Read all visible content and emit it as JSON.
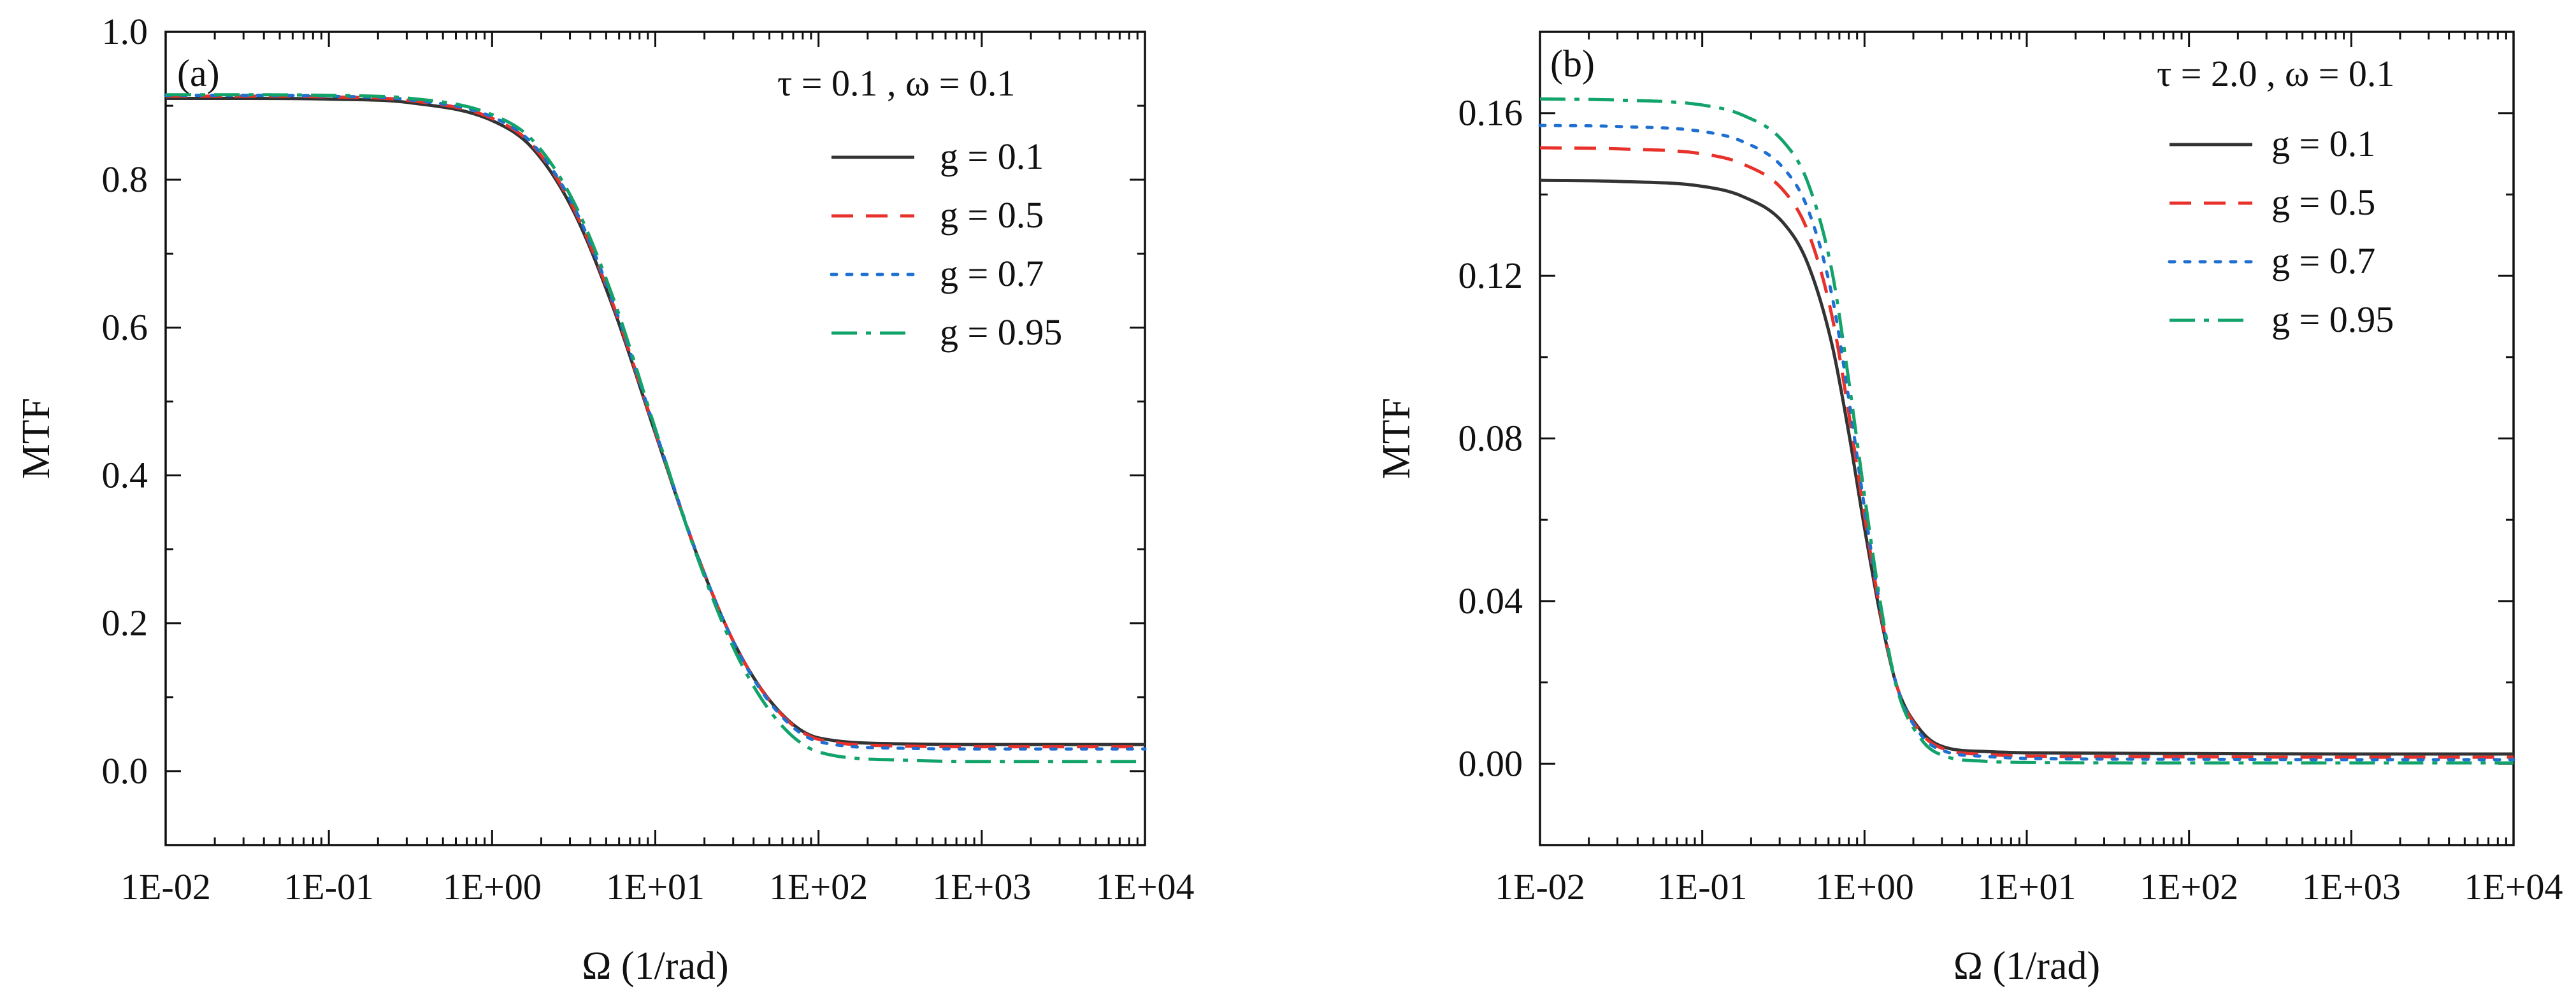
{
  "chart_data": [
    {
      "type": "line",
      "panel_label": "(a)",
      "condition": "τ = 0.1 , ω = 0.1",
      "xlabel": "Ω (1/rad)",
      "ylabel": "MTF",
      "xscale": "log",
      "xlim_log10": [
        -2,
        4
      ],
      "ylim": [
        -0.1,
        1.0
      ],
      "x_ticks": [
        {
          "log10": -2,
          "label": "1E-02"
        },
        {
          "log10": -1,
          "label": "1E-01"
        },
        {
          "log10": 0,
          "label": "1E+00"
        },
        {
          "log10": 1,
          "label": "1E+01"
        },
        {
          "log10": 2,
          "label": "1E+02"
        },
        {
          "log10": 3,
          "label": "1E+03"
        },
        {
          "log10": 4,
          "label": "1E+04"
        }
      ],
      "y_ticks": [
        {
          "value": 0.0,
          "label": "0.0"
        },
        {
          "value": 0.2,
          "label": "0.2"
        },
        {
          "value": 0.4,
          "label": "0.4"
        },
        {
          "value": 0.6,
          "label": "0.6"
        },
        {
          "value": 0.8,
          "label": "0.8"
        },
        {
          "value": 1.0,
          "label": "1.0"
        }
      ],
      "legend_position": "top-right",
      "x_log10": [
        -2,
        -1.5,
        -1,
        -0.5,
        0,
        0.25,
        0.5,
        0.75,
        1,
        1.25,
        1.5,
        1.75,
        2,
        2.5,
        3,
        3.5,
        4
      ],
      "series": [
        {
          "name": "g = 0.1",
          "color": "#333333",
          "dash": "solid",
          "values": [
            0.91,
            0.91,
            0.909,
            0.904,
            0.88,
            0.842,
            0.757,
            0.622,
            0.457,
            0.296,
            0.166,
            0.083,
            0.045,
            0.037,
            0.036,
            0.036,
            0.036
          ]
        },
        {
          "name": "g = 0.5",
          "color": "#e8312a",
          "dash": "dash",
          "values": [
            0.913,
            0.913,
            0.912,
            0.907,
            0.883,
            0.846,
            0.761,
            0.626,
            0.459,
            0.297,
            0.166,
            0.082,
            0.043,
            0.034,
            0.033,
            0.033,
            0.033
          ]
        },
        {
          "name": "g = 0.7",
          "color": "#1f6fd1",
          "dash": "dot",
          "values": [
            0.914,
            0.914,
            0.913,
            0.908,
            0.885,
            0.848,
            0.764,
            0.629,
            0.461,
            0.297,
            0.165,
            0.08,
            0.04,
            0.031,
            0.03,
            0.03,
            0.03
          ]
        },
        {
          "name": "g = 0.95",
          "color": "#12a36a",
          "dash": "dashdot",
          "values": [
            0.915,
            0.915,
            0.914,
            0.91,
            0.888,
            0.853,
            0.77,
            0.635,
            0.463,
            0.294,
            0.157,
            0.068,
            0.026,
            0.015,
            0.013,
            0.013,
            0.013
          ]
        }
      ]
    },
    {
      "type": "line",
      "panel_label": "(b)",
      "condition": "τ = 2.0 , ω = 0.1",
      "xlabel": "Ω (1/rad)",
      "ylabel": "MTF",
      "xscale": "log",
      "xlim_log10": [
        -2,
        4
      ],
      "ylim": [
        -0.02,
        0.18
      ],
      "x_ticks": [
        {
          "log10": -2,
          "label": "1E-02"
        },
        {
          "log10": -1,
          "label": "1E-01"
        },
        {
          "log10": 0,
          "label": "1E+00"
        },
        {
          "log10": 1,
          "label": "1E+01"
        },
        {
          "log10": 2,
          "label": "1E+02"
        },
        {
          "log10": 3,
          "label": "1E+03"
        },
        {
          "log10": 4,
          "label": "1E+04"
        }
      ],
      "y_ticks": [
        {
          "value": 0.0,
          "label": "0.00"
        },
        {
          "value": 0.04,
          "label": "0.04"
        },
        {
          "value": 0.08,
          "label": "0.08"
        },
        {
          "value": 0.12,
          "label": "0.12"
        },
        {
          "value": 0.16,
          "label": "0.16"
        }
      ],
      "legend_position": "top-right",
      "x_log10": [
        -2,
        -1.5,
        -1,
        -0.75,
        -0.5,
        -0.35,
        -0.2,
        -0.1,
        0,
        0.1,
        0.2,
        0.35,
        0.5,
        0.75,
        1,
        2,
        3,
        4
      ],
      "series": [
        {
          "name": "g = 0.1",
          "color": "#333333",
          "dash": "solid",
          "values": [
            0.1435,
            0.1432,
            0.142,
            0.1395,
            0.133,
            0.123,
            0.103,
            0.082,
            0.058,
            0.036,
            0.019,
            0.008,
            0.004,
            0.003,
            0.0027,
            0.0025,
            0.0024,
            0.0024
          ]
        },
        {
          "name": "g = 0.5",
          "color": "#e8312a",
          "dash": "dash",
          "values": [
            0.1515,
            0.1512,
            0.15,
            0.1475,
            0.141,
            0.131,
            0.11,
            0.087,
            0.061,
            0.037,
            0.019,
            0.0075,
            0.0035,
            0.0023,
            0.0019,
            0.0017,
            0.0016,
            0.0016
          ]
        },
        {
          "name": "g = 0.7",
          "color": "#1f6fd1",
          "dash": "dot",
          "values": [
            0.157,
            0.1567,
            0.1555,
            0.153,
            0.1465,
            0.1365,
            0.115,
            0.0905,
            0.063,
            0.038,
            0.019,
            0.007,
            0.003,
            0.0018,
            0.0013,
            0.0011,
            0.001,
            0.001
          ]
        },
        {
          "name": "g = 0.95",
          "color": "#12a36a",
          "dash": "dashdot",
          "values": [
            0.1635,
            0.1632,
            0.162,
            0.1595,
            0.153,
            0.143,
            0.121,
            0.095,
            0.066,
            0.039,
            0.0185,
            0.006,
            0.0018,
            0.0006,
            0.0003,
            0.0002,
            0.0002,
            0.0002
          ]
        }
      ]
    }
  ]
}
